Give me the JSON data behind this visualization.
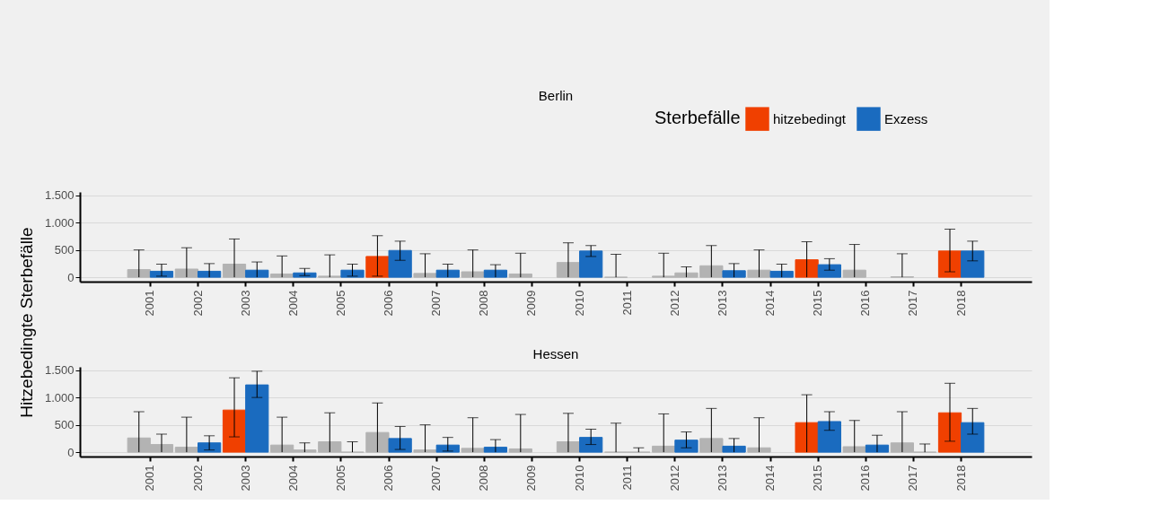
{
  "chart_data": [
    {
      "type": "bar",
      "title": "Berlin",
      "ylabel": "Hitzebedingte Sterbefälle",
      "legend_title": "Sterbefälle",
      "legend": "top right",
      "grid": "y",
      "categories": [
        "2001",
        "2002",
        "2003",
        "2004",
        "2005",
        "2006",
        "2007",
        "2008",
        "2009",
        "2010",
        "2011",
        "2012",
        "2013",
        "2014",
        "2015",
        "2016",
        "2017",
        "2018"
      ],
      "ylim": [
        -80,
        1560
      ],
      "yticks": [
        {
          "value": 0,
          "label": "0"
        },
        {
          "value": 500,
          "label": "500"
        },
        {
          "value": 1000,
          "label": "1.000"
        },
        {
          "value": 1500,
          "label": "1.500"
        }
      ],
      "series": [
        {
          "name": "hitzebedingt",
          "color": "#f04000",
          "values": [
            140,
            150,
            240,
            60,
            20,
            380,
            70,
            100,
            60,
            270,
            0,
            20,
            210,
            130,
            320,
            130,
            10,
            480
          ],
          "colors": [
            "#b3b3b3",
            "#b3b3b3",
            "#b3b3b3",
            "#b3b3b3",
            "#b3b3b3",
            "#f04000",
            "#b3b3b3",
            "#b3b3b3",
            "#b3b3b3",
            "#b3b3b3",
            "#b3b3b3",
            "#b3b3b3",
            "#b3b3b3",
            "#b3b3b3",
            "#f04000",
            "#b3b3b3",
            "#b3b3b3",
            "#f04000"
          ],
          "errors": [
            [
              0,
              500
            ],
            [
              0,
              540
            ],
            [
              0,
              700
            ],
            [
              0,
              390
            ],
            [
              0,
              410
            ],
            [
              20,
              760
            ],
            [
              0,
              430
            ],
            [
              0,
              500
            ],
            [
              0,
              440
            ],
            [
              0,
              630
            ],
            [
              0,
              420
            ],
            [
              0,
              440
            ],
            [
              0,
              580
            ],
            [
              0,
              500
            ],
            [
              0,
              650
            ],
            [
              0,
              600
            ],
            [
              0,
              430
            ],
            [
              100,
              880
            ]
          ]
        },
        {
          "name": "Exzess",
          "color": "#1a6bbf",
          "values": [
            110,
            110,
            130,
            80,
            130,
            490,
            130,
            130,
            null,
            480,
            null,
            80,
            120,
            110,
            230,
            null,
            null,
            480
          ],
          "colors": [
            "#1a6bbf",
            "#1a6bbf",
            "#1a6bbf",
            "#1a6bbf",
            "#1a6bbf",
            "#1a6bbf",
            "#1a6bbf",
            "#1a6bbf",
            null,
            "#1a6bbf",
            null,
            "#b3b3b3",
            "#1a6bbf",
            "#1a6bbf",
            "#1a6bbf",
            null,
            null,
            "#1a6bbf"
          ],
          "errors": [
            [
              20,
              240
            ],
            [
              0,
              250
            ],
            [
              0,
              280
            ],
            [
              30,
              160
            ],
            [
              20,
              240
            ],
            [
              310,
              660
            ],
            [
              0,
              240
            ],
            [
              0,
              230
            ],
            null,
            [
              380,
              580
            ],
            null,
            [
              0,
              190
            ],
            [
              0,
              250
            ],
            [
              0,
              240
            ],
            [
              130,
              340
            ],
            null,
            null,
            [
              300,
              660
            ]
          ]
        }
      ]
    },
    {
      "type": "bar",
      "title": "Hessen",
      "grid": "y",
      "categories": [
        "2001",
        "2002",
        "2003",
        "2004",
        "2005",
        "2006",
        "2007",
        "2008",
        "2009",
        "2010",
        "2011",
        "2012",
        "2013",
        "2014",
        "2015",
        "2016",
        "2017",
        "2018"
      ],
      "ylim": [
        -80,
        1560
      ],
      "yticks": [
        {
          "value": 0,
          "label": "0"
        },
        {
          "value": 500,
          "label": "500"
        },
        {
          "value": 1000,
          "label": "1.000"
        },
        {
          "value": 1500,
          "label": "1.500"
        }
      ],
      "series": [
        {
          "name": "hitzebedingt",
          "color": "#f04000",
          "values": [
            260,
            90,
            770,
            130,
            190,
            360,
            40,
            70,
            60,
            190,
            0,
            110,
            250,
            80,
            540,
            100,
            170,
            720
          ],
          "colors": [
            "#b3b3b3",
            "#b3b3b3",
            "#f04000",
            "#b3b3b3",
            "#b3b3b3",
            "#b3b3b3",
            "#b3b3b3",
            "#b3b3b3",
            "#b3b3b3",
            "#b3b3b3",
            "#b3b3b3",
            "#b3b3b3",
            "#b3b3b3",
            "#b3b3b3",
            "#f04000",
            "#b3b3b3",
            "#b3b3b3",
            "#f04000"
          ],
          "errors": [
            [
              0,
              740
            ],
            [
              0,
              640
            ],
            [
              280,
              1360
            ],
            [
              0,
              640
            ],
            [
              0,
              720
            ],
            [
              0,
              900
            ],
            [
              0,
              500
            ],
            [
              0,
              630
            ],
            [
              0,
              690
            ],
            [
              0,
              710
            ],
            [
              0,
              530
            ],
            [
              0,
              700
            ],
            [
              0,
              800
            ],
            [
              0,
              630
            ],
            [
              0,
              1050
            ],
            [
              0,
              580
            ],
            [
              0,
              740
            ],
            [
              200,
              1260
            ]
          ]
        },
        {
          "name": "Exzess",
          "color": "#1a6bbf",
          "values": [
            140,
            170,
            1230,
            40,
            0,
            250,
            130,
            90,
            null,
            270,
            0,
            220,
            110,
            null,
            560,
            130,
            0,
            540
          ],
          "colors": [
            "#b3b3b3",
            "#1a6bbf",
            "#1a6bbf",
            "#b3b3b3",
            "#b3b3b3",
            "#1a6bbf",
            "#1a6bbf",
            "#1a6bbf",
            null,
            "#1a6bbf",
            "#b3b3b3",
            "#1a6bbf",
            "#1a6bbf",
            null,
            "#1a6bbf",
            "#1a6bbf",
            "#b3b3b3",
            "#1a6bbf"
          ],
          "errors": [
            [
              0,
              330
            ],
            [
              40,
              300
            ],
            [
              1000,
              1480
            ],
            [
              0,
              170
            ],
            [
              0,
              190
            ],
            [
              50,
              470
            ],
            [
              20,
              270
            ],
            [
              0,
              230
            ],
            null,
            [
              140,
              420
            ],
            [
              0,
              80
            ],
            [
              80,
              370
            ],
            [
              0,
              250
            ],
            null,
            [
              400,
              740
            ],
            [
              0,
              310
            ],
            [
              0,
              150
            ],
            [
              330,
              800
            ]
          ]
        }
      ]
    }
  ]
}
